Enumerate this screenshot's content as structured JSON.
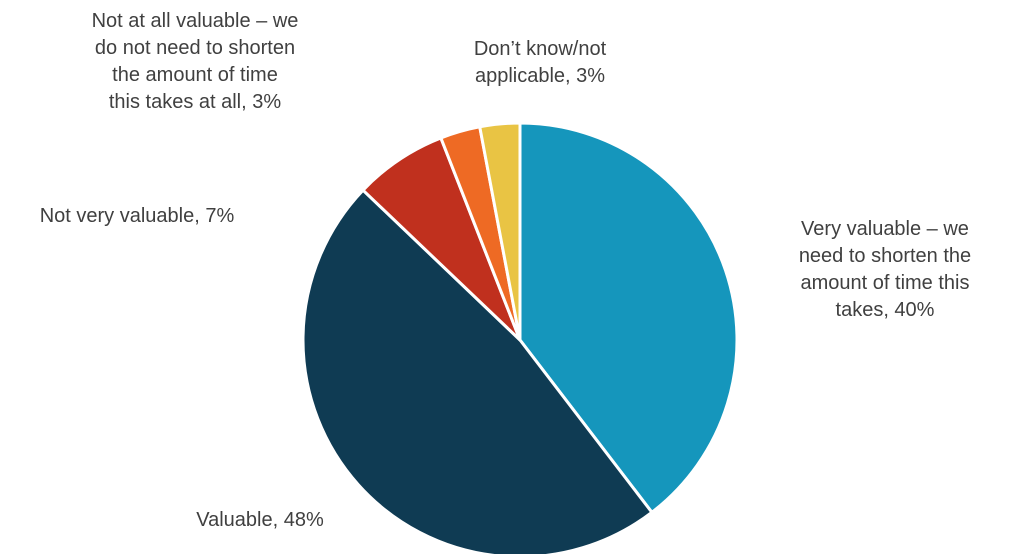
{
  "chart_data": {
    "type": "pie",
    "slices": [
      {
        "label": "Very valuable – we need to shorten the amount of time this takes, 40%",
        "value": 40,
        "color": "#1596BC"
      },
      {
        "label": "Valuable, 48%",
        "value": 48,
        "color": "#0F3B53"
      },
      {
        "label": "Not very valuable, 7%",
        "value": 7,
        "color": "#C0301E"
      },
      {
        "label": "Not at all valuable – we do not need to shorten the amount of time this takes at all, 3%",
        "value": 3,
        "color": "#EE6A24"
      },
      {
        "label": "Don’t know/not applicable, 3%",
        "value": 3,
        "color": "#E9C444"
      }
    ],
    "label_lines": {
      "very_valuable": [
        "Very valuable – we",
        "need to shorten the",
        "amount of time this",
        "takes, 40%"
      ],
      "valuable": [
        "Valuable, 48%"
      ],
      "not_very": [
        "Not very valuable, 7%"
      ],
      "not_at_all": [
        "Not at all valuable – we",
        "do not need to shorten",
        "the amount of time",
        "this takes at all, 3%"
      ],
      "dont_know": [
        "Don’t know/not",
        "applicable, 3%"
      ]
    }
  }
}
